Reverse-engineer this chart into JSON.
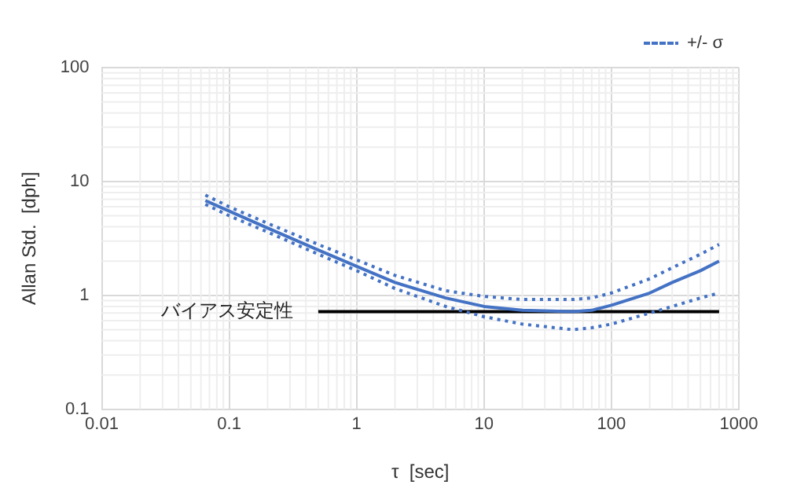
{
  "chart_data": {
    "type": "line",
    "xlabel": "τ  [sec]",
    "ylabel": "Allan Std.  [dph]",
    "log": "xy",
    "xlim": [
      0.01,
      1000
    ],
    "xticks": [
      0.01,
      0.1,
      1,
      10,
      100,
      1000
    ],
    "ylim": [
      0.1,
      100
    ],
    "yticks": [
      0.1,
      1,
      10,
      100
    ],
    "grid": true,
    "legend": "top right",
    "marker": "none",
    "series": [
      {
        "color": "#4472c4",
        "line_style": "solid",
        "x": [
          0.065,
          0.1,
          0.2,
          0.5,
          1,
          2,
          5,
          10,
          20,
          50,
          70,
          100,
          200,
          300,
          500,
          700
        ],
        "values": [
          6.8,
          5.5,
          3.9,
          2.5,
          1.8,
          1.3,
          0.95,
          0.8,
          0.74,
          0.72,
          0.74,
          0.82,
          1.05,
          1.3,
          1.65,
          2.0
        ]
      },
      {
        "name": "+/- σ",
        "color": "#4472c4",
        "line_style": "dotted",
        "x": [
          0.065,
          0.1,
          0.2,
          0.5,
          1,
          2,
          5,
          10,
          20,
          50,
          70,
          100,
          200,
          300,
          500,
          700
        ],
        "values": [
          7.6,
          6.0,
          4.3,
          2.8,
          2.05,
          1.5,
          1.1,
          0.98,
          0.92,
          0.92,
          0.95,
          1.05,
          1.4,
          1.75,
          2.3,
          2.8
        ]
      },
      {
        "color": "#4472c4",
        "line_style": "dotted",
        "x": [
          0.065,
          0.1,
          0.2,
          0.5,
          1,
          2,
          5,
          10,
          20,
          50,
          70,
          100,
          200,
          300,
          500,
          700
        ],
        "values": [
          6.3,
          5.0,
          3.6,
          2.3,
          1.65,
          1.15,
          0.8,
          0.65,
          0.56,
          0.5,
          0.52,
          0.56,
          0.7,
          0.8,
          0.95,
          1.05
        ]
      },
      {
        "color": "#000000",
        "line_style": "solid",
        "x": [
          0.5,
          700
        ],
        "values": [
          0.72,
          0.72
        ]
      }
    ],
    "annotations": [
      {
        "text": "バイアス安定性",
        "x": 0.5,
        "y": 0.72
      }
    ]
  }
}
